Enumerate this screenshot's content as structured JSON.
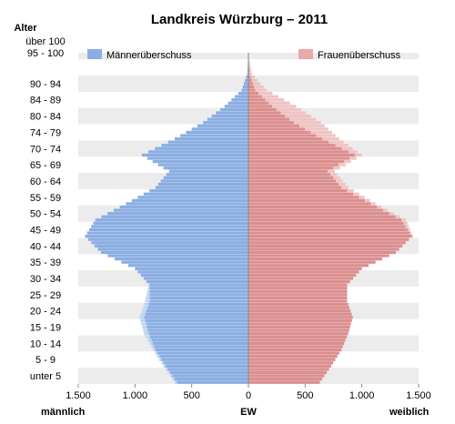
{
  "chart_data": {
    "type": "bar",
    "title": "Landkreis Würzburg – 2011",
    "age_axis_title": "Alter",
    "x_center_label": "EW",
    "x_left_label": "männlich",
    "x_right_label": "weiblich",
    "x_tick_labels": [
      "1.500",
      "1.000",
      "500",
      "0",
      "500",
      "1.000",
      "1.500"
    ],
    "xlim": [
      -1500,
      1500
    ],
    "age_labels": [
      "über 100",
      "95 - 100",
      "90 - 94",
      "84 - 89",
      "80 - 84",
      "74 - 79",
      "70 - 74",
      "65 - 69",
      "60 - 64",
      "55 - 59",
      "50 - 54",
      "45 - 49",
      "40 - 44",
      "35 - 39",
      "30 - 34",
      "25 - 29",
      "20 - 24",
      "15 - 19",
      "10 - 14",
      "5 - 9",
      "unter 5"
    ],
    "legend": [
      "Männerüberschuss",
      "Frauenüberschuss"
    ],
    "colors": {
      "male": "#8aaee3",
      "male_surplus": "#c0d4f2",
      "female": "#dc8f8f",
      "female_surplus": "#f0c4c4",
      "grid_band": "#ececec"
    },
    "male_anchor_ages": [
      0,
      5,
      10,
      15,
      20,
      25,
      30,
      35,
      40,
      45,
      50,
      55,
      60,
      65,
      70,
      75,
      80,
      85,
      90,
      95,
      100
    ],
    "male_anchor_values": [
      650,
      750,
      840,
      920,
      960,
      910,
      880,
      1000,
      1300,
      1440,
      1350,
      1080,
      820,
      700,
      940,
      650,
      400,
      210,
      60,
      10,
      2
    ],
    "female_anchor_ages": [
      0,
      5,
      10,
      15,
      20,
      25,
      30,
      35,
      40,
      45,
      50,
      55,
      60,
      65,
      70,
      75,
      80,
      85,
      90,
      95,
      100
    ],
    "female_anchor_values": [
      630,
      730,
      820,
      880,
      920,
      870,
      870,
      1000,
      1300,
      1450,
      1390,
      1120,
      880,
      760,
      1000,
      800,
      640,
      420,
      160,
      30,
      5
    ]
  }
}
